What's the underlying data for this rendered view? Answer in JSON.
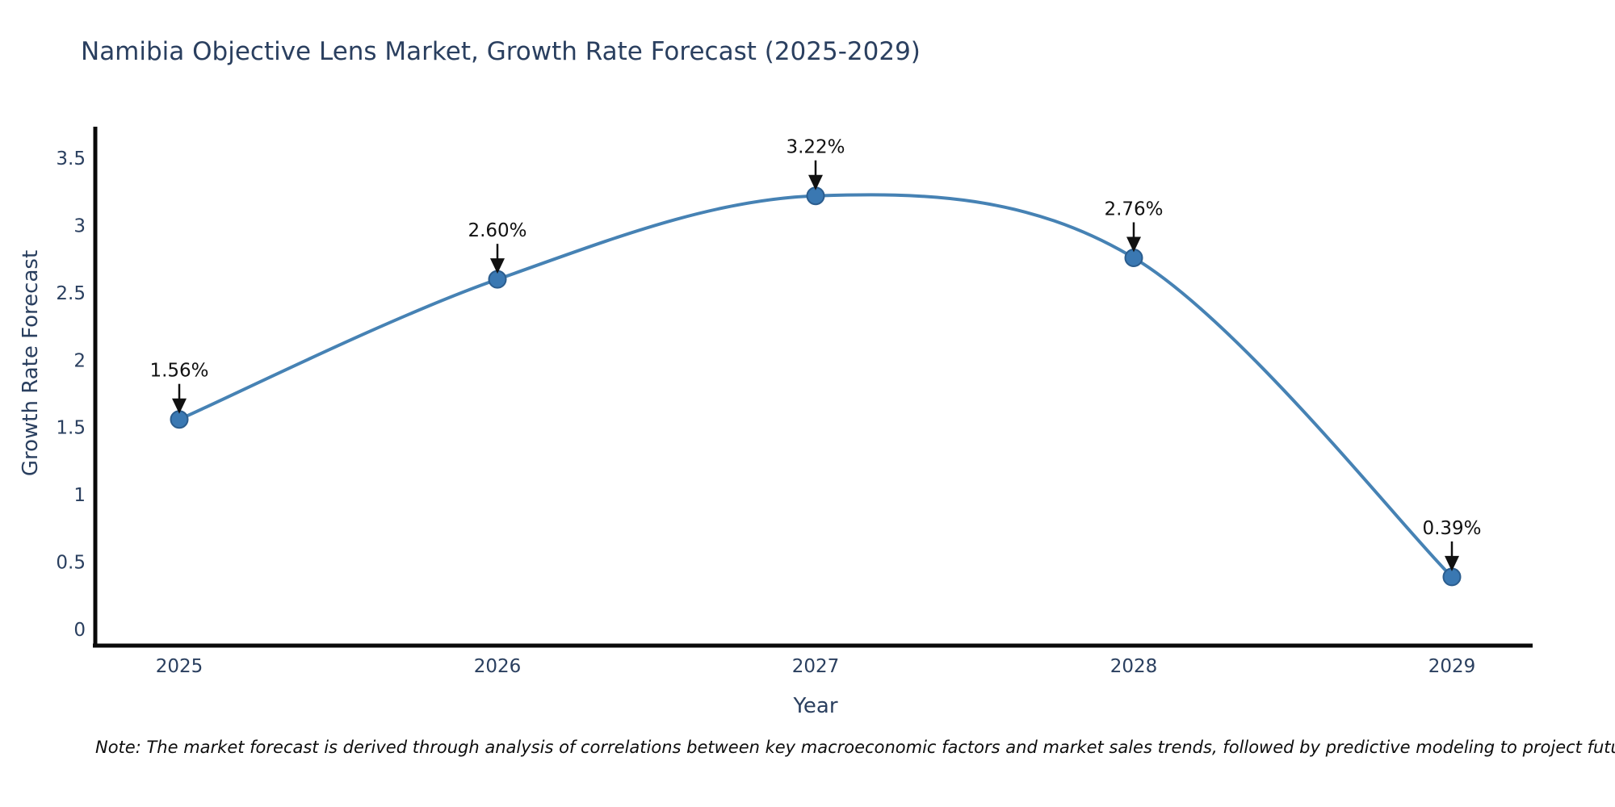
{
  "page": {
    "note": "Note: The market forecast is derived through analysis of correlations between key macroeconomic factors and market sales trends, followed by predictive modeling to project future sales"
  },
  "chart_data": {
    "type": "line",
    "title": "Namibia Objective Lens Market, Growth Rate Forecast (2025-2029)",
    "xlabel": "Year",
    "ylabel": "Growth Rate Forecast",
    "x": [
      2025,
      2026,
      2027,
      2028,
      2029
    ],
    "series": [
      {
        "name": "Growth Rate Forecast",
        "values": [
          1.56,
          2.6,
          3.22,
          2.76,
          0.39
        ]
      }
    ],
    "point_labels": [
      "1.56%",
      "2.60%",
      "3.22%",
      "2.76%",
      "0.39%"
    ],
    "yticks": [
      0,
      0.5,
      1,
      1.5,
      2,
      2.5,
      3,
      3.5
    ],
    "ylim": [
      -0.12,
      3.73
    ],
    "grid": false,
    "legend_position": "none",
    "line_shape": "spline",
    "colors": {
      "line": "#4682b4",
      "marker": "#3a78b2",
      "marker_edge": "#2b5d8e",
      "axis_line": "#0a0a0a",
      "tick_text": "#2a3f5f",
      "annotation": "#111111"
    }
  }
}
